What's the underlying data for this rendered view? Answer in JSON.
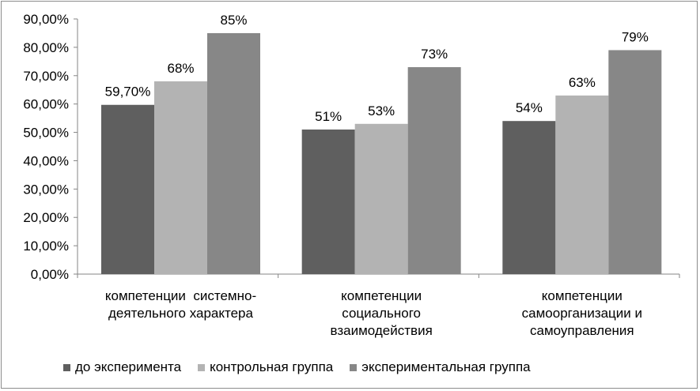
{
  "chart_data": {
    "type": "bar",
    "categories": [
      [
        "компетенции  системно-",
        "деятельного характера"
      ],
      [
        "компетенции",
        "социального",
        "взаимодействия"
      ],
      [
        "компетенции",
        "самоорганизации и",
        "самоуправления"
      ]
    ],
    "series": [
      {
        "name": "до эксперимента",
        "color": "#5f5f5f",
        "values": [
          59.7,
          51,
          54
        ],
        "labels": [
          "59,70%",
          "51%",
          "54%"
        ]
      },
      {
        "name": "контрольная группа",
        "color": "#b3b3b3",
        "values": [
          68,
          53,
          63
        ],
        "labels": [
          "68%",
          "53%",
          "63%"
        ]
      },
      {
        "name": "экспериментальная  группа",
        "color": "#878787",
        "values": [
          85,
          73,
          79
        ],
        "labels": [
          "85%",
          "73%",
          "79%"
        ]
      }
    ],
    "ylim": [
      0,
      90
    ],
    "yticks": [
      "0,00%",
      "10,00%",
      "20,00%",
      "30,00%",
      "40,00%",
      "50,00%",
      "60,00%",
      "70,00%",
      "80,00%",
      "90,00%"
    ],
    "grid": false,
    "legend_position": "bottom",
    "xlabel": "",
    "ylabel": "",
    "title": ""
  }
}
